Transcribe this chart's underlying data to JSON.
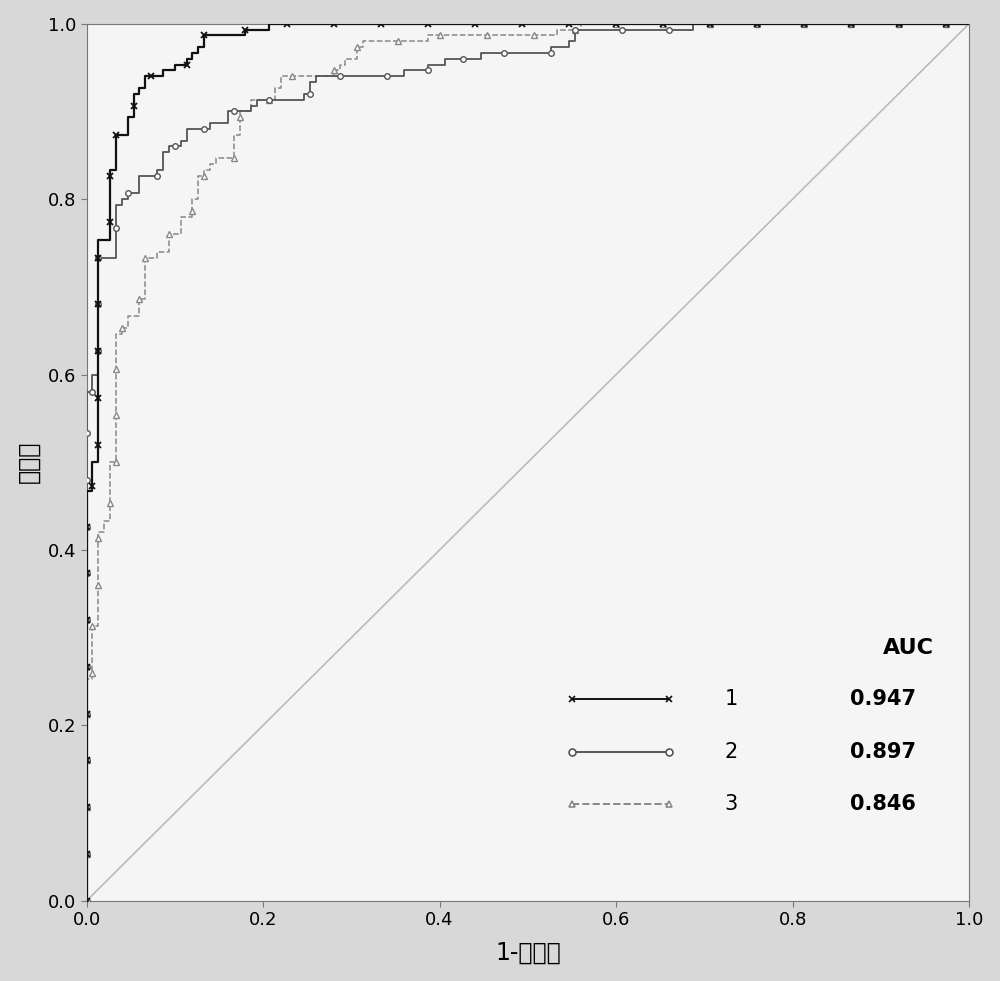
{
  "xlabel": "1-特异性",
  "ylabel": "敏感性",
  "xlim": [
    0.0,
    1.0
  ],
  "ylim": [
    0.0,
    1.0
  ],
  "xticks": [
    0.0,
    0.2,
    0.4,
    0.6,
    0.8,
    1.0
  ],
  "yticks": [
    0.0,
    0.2,
    0.4,
    0.6,
    0.8,
    1.0
  ],
  "curve1_auc": 0.947,
  "curve2_auc": 0.897,
  "curve3_auc": 0.846,
  "curve1_color": "#111111",
  "curve2_color": "#555555",
  "curve3_color": "#888888",
  "diagonal_color": "#bbbbbb",
  "legend_labels": [
    "1",
    "2",
    "3"
  ],
  "legend_aucs": [
    "0.947",
    "0.897",
    "0.846"
  ],
  "auc_label": "AUC",
  "background_color": "#d8d8d8",
  "plot_bg_color": "#f5f5f5",
  "fontsize_axis_label": 17,
  "fontsize_tick": 13,
  "fontsize_legend": 15
}
